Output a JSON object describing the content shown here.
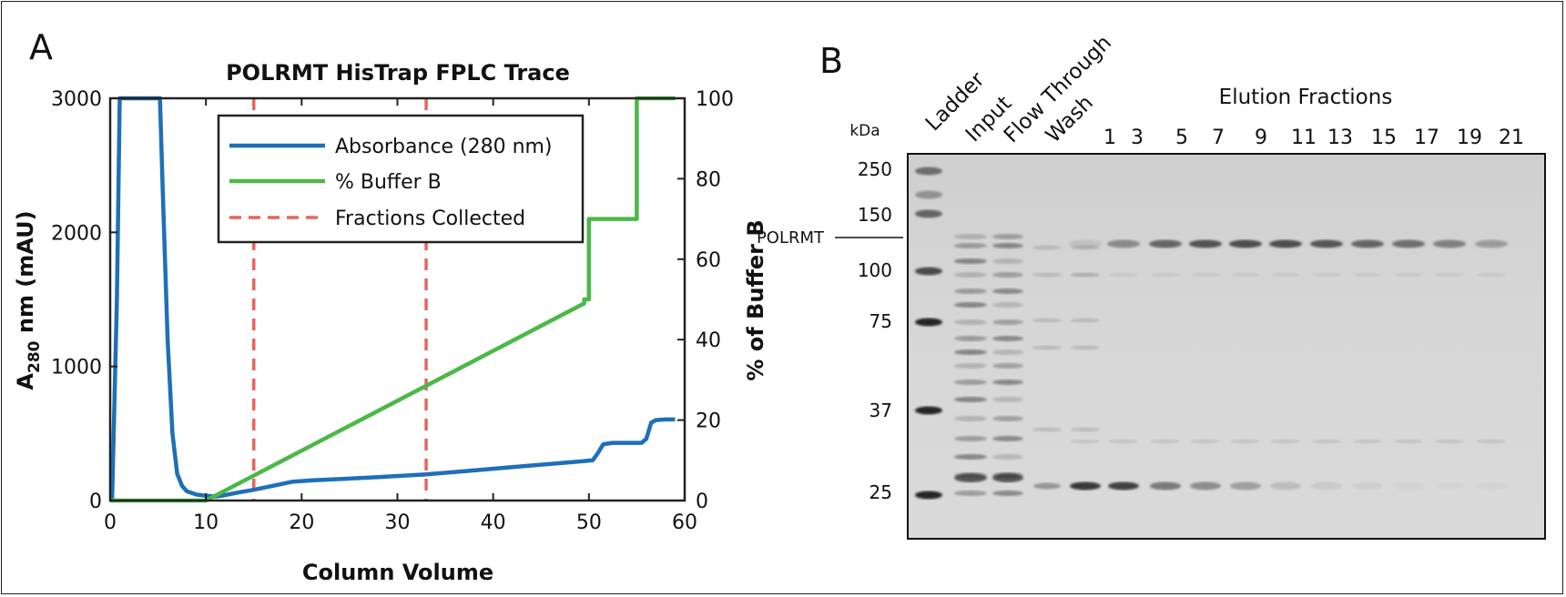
{
  "panel_a": {
    "label": "A",
    "chart_data": {
      "type": "line",
      "title": "POLRMT HisTrap FPLC Trace",
      "xlabel": "Column Volume",
      "ylabel_main": "A",
      "ylabel_sub": "280",
      "ylabel_rest": " nm (mAU)",
      "y2label": "% of Buffer B",
      "xlim": [
        0,
        60
      ],
      "ylim": [
        0,
        3000
      ],
      "y2lim": [
        0,
        100
      ],
      "xticks": [
        "0",
        "10",
        "20",
        "30",
        "40",
        "50",
        "60"
      ],
      "yticks": [
        "0",
        "1000",
        "2000",
        "3000"
      ],
      "y2ticks": [
        "0",
        "20",
        "40",
        "60",
        "80",
        "100"
      ],
      "legend_position": "top-center",
      "series": [
        {
          "name": "Absorbance (280 nm)",
          "axis": "left",
          "color": "#1f6fb8",
          "style": "solid",
          "x": [
            0.2,
            0.7,
            1.0,
            5.2,
            5.5,
            6.0,
            6.5,
            7.0,
            7.5,
            8.0,
            9.0,
            10.0,
            11.0,
            12.0,
            13.0,
            15.0,
            17.0,
            19.0,
            21.0,
            24.0,
            28.0,
            33.0,
            38.0,
            43.0,
            48.0,
            50.4,
            50.9,
            51.5,
            52.5,
            54.5,
            55.5,
            56.0,
            56.5,
            57.0,
            58.0,
            59.0
          ],
          "y": [
            0,
            1500,
            3000,
            3000,
            2300,
            1200,
            500,
            200,
            110,
            70,
            45,
            35,
            30,
            40,
            55,
            80,
            110,
            140,
            150,
            160,
            175,
            195,
            225,
            255,
            285,
            300,
            350,
            420,
            430,
            430,
            430,
            460,
            580,
            600,
            605,
            605
          ]
        },
        {
          "name": "% Buffer B",
          "axis": "right",
          "color": "#4cb848",
          "style": "solid",
          "x": [
            0,
            10,
            49.5,
            49.5,
            50.0,
            50.0,
            55.0,
            55.0,
            59.0
          ],
          "y": [
            0,
            0,
            49,
            50,
            50,
            70,
            70,
            100,
            100
          ]
        },
        {
          "name": "Fractions Collected",
          "color": "#e4665f",
          "style": "dashed",
          "vlines": [
            15,
            33
          ]
        }
      ]
    }
  },
  "panel_b": {
    "label": "B",
    "kda_label": "kDa",
    "polrmt_label": "POLRMT",
    "elution_header": "Elution Fractions",
    "lane_labels": [
      "Ladder",
      "Input",
      "Flow Through",
      "Wash"
    ],
    "fraction_numbers": [
      "1",
      "3",
      "5",
      "7",
      "9",
      "11",
      "13",
      "15",
      "17",
      "19",
      "21"
    ],
    "markers": [
      "250",
      "150",
      "100",
      "75",
      "37",
      "25"
    ]
  }
}
